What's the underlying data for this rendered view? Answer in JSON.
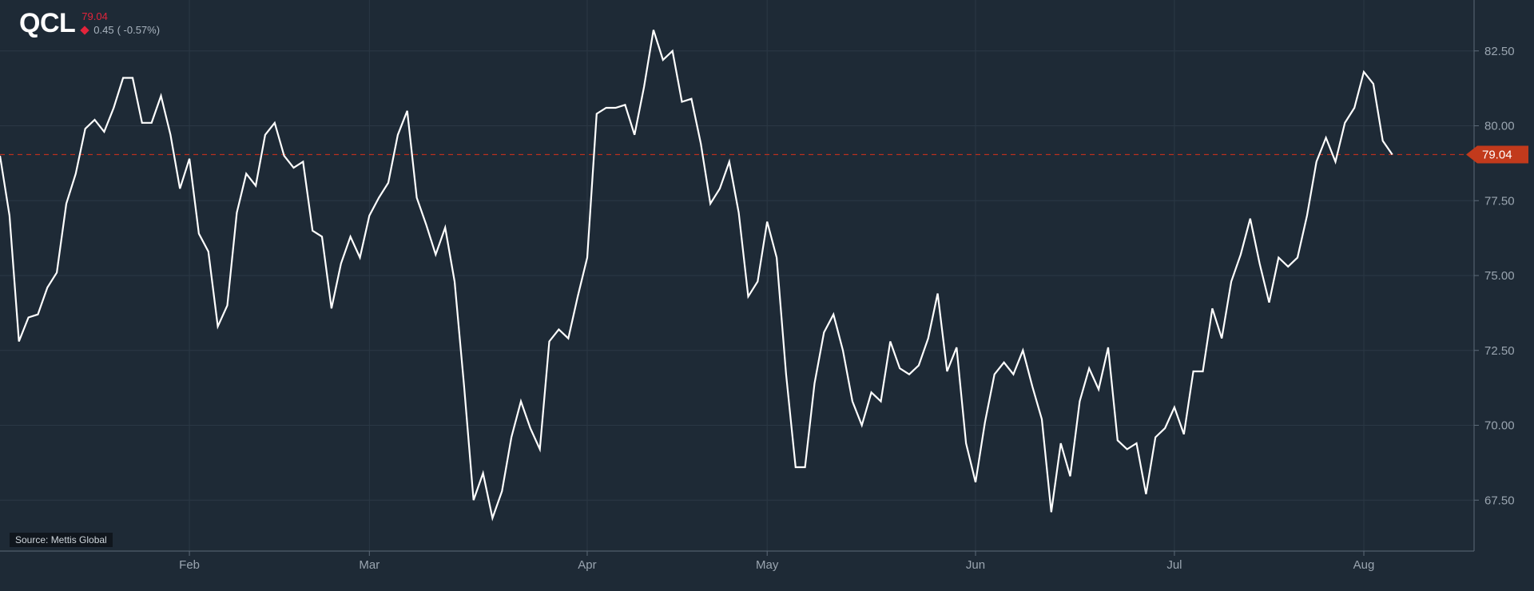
{
  "header": {
    "symbol": "QCL",
    "last_price": "79.04",
    "change": "0.45",
    "change_pct": "( -0.57%)"
  },
  "source": "Source: Mettis Global",
  "price_tag": "79.04",
  "colors": {
    "background": "#1e2a36",
    "line": "#ffffff",
    "grid": "#2b3845",
    "reference_line": "#b8301f",
    "price_tag": "#c23a1c",
    "down": "#e3243b"
  },
  "chart_data": {
    "type": "line",
    "title": "",
    "xlabel": "",
    "ylabel": "",
    "ylim": [
      65.8,
      84.2
    ],
    "yticks": [
      67.5,
      70.0,
      72.5,
      75.0,
      77.5,
      80.0,
      82.5
    ],
    "ytick_labels": [
      "67.50",
      "70.00",
      "72.50",
      "75.00",
      "77.50",
      "80.00",
      "82.50"
    ],
    "xlim": [
      0,
      151
    ],
    "x_ticks": [
      {
        "label": "Feb",
        "x": 20
      },
      {
        "label": "Mar",
        "x": 39
      },
      {
        "label": "Apr",
        "x": 62
      },
      {
        "label": "May",
        "x": 81
      },
      {
        "label": "Jun",
        "x": 103
      },
      {
        "label": "Jul",
        "x": 124
      },
      {
        "label": "Aug",
        "x": 144
      }
    ],
    "reference_line": 79.04,
    "series": [
      {
        "values": [
          79.0,
          77.0,
          72.8,
          73.6,
          73.7,
          74.6,
          75.1,
          77.4,
          78.4,
          79.9,
          80.2,
          79.8,
          80.6,
          81.6,
          81.6,
          80.1,
          80.1,
          81.0,
          79.7,
          77.9,
          78.9,
          76.4,
          75.8,
          73.3,
          74.0,
          77.1,
          78.4,
          78.0,
          79.7,
          80.1,
          79.0,
          78.6,
          78.8,
          76.5,
          76.3,
          73.9,
          75.4,
          76.3,
          75.6,
          77.0,
          77.6,
          78.1,
          79.7,
          80.5,
          77.6,
          76.7,
          75.7,
          76.6,
          74.8,
          71.3,
          67.5,
          68.4,
          66.9,
          67.8,
          69.6,
          70.8,
          69.9,
          69.2,
          72.8,
          73.2,
          72.9,
          74.3,
          75.6,
          80.4,
          80.6,
          80.6,
          80.7,
          79.7,
          81.3,
          83.2,
          82.2,
          82.5,
          80.8,
          80.9,
          79.4,
          77.4,
          77.9,
          78.8,
          77.1,
          74.3,
          74.8,
          76.8,
          75.6,
          71.7,
          68.6,
          68.6,
          71.4,
          73.1,
          73.7,
          72.5,
          70.8,
          70.0,
          71.1,
          70.8,
          72.8,
          71.9,
          71.7,
          72.0,
          72.9,
          74.4,
          71.8,
          72.6,
          69.4,
          68.1,
          70.1,
          71.7,
          72.1,
          71.7,
          72.5,
          71.3,
          70.2,
          67.1,
          69.4,
          68.3,
          70.8,
          71.9,
          71.2,
          72.6,
          69.5,
          69.2,
          69.4,
          67.7,
          69.6,
          69.9,
          70.6,
          69.7,
          71.8,
          71.8,
          73.9,
          72.9,
          74.8,
          75.7,
          76.9,
          75.4,
          74.1,
          75.6,
          75.3,
          75.6,
          77.0,
          78.8,
          79.6,
          78.8,
          80.1,
          80.6,
          81.8,
          81.4,
          79.5,
          79.04
        ]
      }
    ],
    "grid": true,
    "legend": "none"
  }
}
